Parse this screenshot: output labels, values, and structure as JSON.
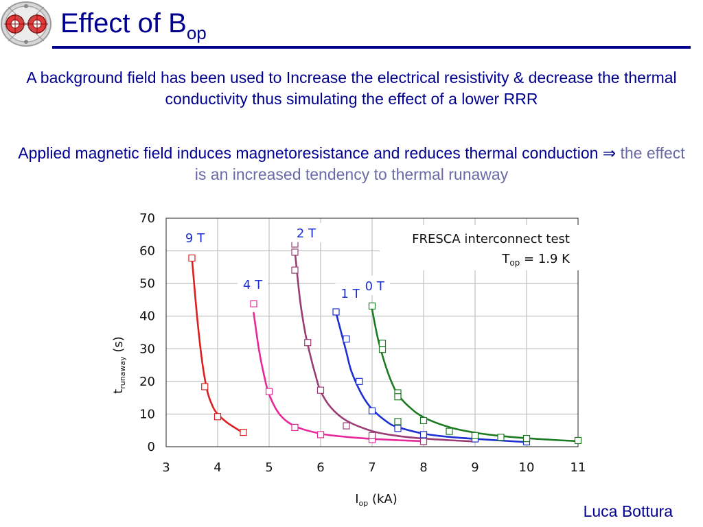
{
  "slide": {
    "title_main": "Effect of B",
    "title_sub": "op",
    "para1": "A background field has been used to Increase the electrical resistivity & decrease the thermal conductivity thus simulating the effect of a lower RRR",
    "para2_main": "Applied magnetic field induces magnetoresistance and reduces thermal conduction",
    "para2_arrow": "⇒",
    "para2_muted": "the effect is an increased tendency to thermal runaway",
    "author": "Luca Bottura",
    "logo_icon": "magnet-cross-section-logo"
  },
  "chart_data": {
    "type": "scatter",
    "title": "FRESCA interconnect test",
    "subtitle_main": "T",
    "subtitle_sub": "op",
    "subtitle_rest": " = 1.9 K",
    "xlabel_main": "I",
    "xlabel_sub": "op",
    "xlabel_rest": " (kA)",
    "ylabel_main": "t",
    "ylabel_sub": "runaway",
    "ylabel_rest": " (s)",
    "xlim": [
      3,
      11
    ],
    "ylim": [
      0,
      70
    ],
    "xticks": [
      3,
      4,
      5,
      6,
      7,
      8,
      9,
      10,
      11
    ],
    "yticks": [
      0,
      10,
      20,
      30,
      40,
      50,
      60,
      70
    ],
    "grid": true,
    "series": [
      {
        "name": "9 T",
        "color": "#dd1f1f",
        "points": [
          [
            3.5,
            57.8
          ],
          [
            3.75,
            18.4
          ],
          [
            4.0,
            9.2
          ],
          [
            4.5,
            4.4
          ]
        ],
        "curve": [
          [
            3.5,
            58
          ],
          [
            3.6,
            40
          ],
          [
            3.7,
            26
          ],
          [
            3.8,
            17
          ],
          [
            3.9,
            12.5
          ],
          [
            4.0,
            10
          ],
          [
            4.2,
            7.2
          ],
          [
            4.5,
            4.2
          ]
        ]
      },
      {
        "name": "4 T",
        "color": "#e8289a",
        "points": [
          [
            4.7,
            43.8
          ],
          [
            5.0,
            16.9
          ],
          [
            5.5,
            5.9
          ],
          [
            6.0,
            3.7
          ],
          [
            7.0,
            2.2
          ]
        ],
        "curve": [
          [
            4.7,
            41
          ],
          [
            4.8,
            30
          ],
          [
            4.9,
            22
          ],
          [
            5.0,
            16
          ],
          [
            5.2,
            10
          ],
          [
            5.5,
            6.3
          ],
          [
            6.0,
            4.0
          ],
          [
            6.5,
            3.0
          ],
          [
            7.0,
            2.4
          ],
          [
            7.5,
            2.0
          ],
          [
            8.0,
            1.7
          ]
        ]
      },
      {
        "name": "2 T",
        "color": "#9a3c74",
        "points": [
          [
            5.5,
            62.1
          ],
          [
            5.5,
            59.6
          ],
          [
            5.5,
            54.1
          ],
          [
            5.75,
            31.9
          ],
          [
            6.0,
            17.3
          ],
          [
            6.5,
            6.4
          ],
          [
            7.0,
            3.4
          ],
          [
            8.0,
            1.6
          ]
        ],
        "curve": [
          [
            5.5,
            60
          ],
          [
            5.6,
            45
          ],
          [
            5.7,
            35
          ],
          [
            5.8,
            28
          ],
          [
            5.9,
            22
          ],
          [
            6.0,
            17
          ],
          [
            6.2,
            12
          ],
          [
            6.5,
            8
          ],
          [
            7.0,
            4.8
          ],
          [
            7.5,
            3.3
          ],
          [
            8.0,
            2.5
          ],
          [
            8.5,
            2.0
          ],
          [
            9.0,
            1.6
          ]
        ]
      },
      {
        "name": "1 T",
        "color": "#1d2fd0",
        "points": [
          [
            6.3,
            41.3
          ],
          [
            6.5,
            33.0
          ],
          [
            6.75,
            20.0
          ],
          [
            7.0,
            11.0
          ],
          [
            7.5,
            5.6
          ],
          [
            8.0,
            3.7
          ],
          [
            9.0,
            2.4
          ],
          [
            10.0,
            1.5
          ]
        ],
        "curve": [
          [
            6.3,
            41
          ],
          [
            6.4,
            35
          ],
          [
            6.5,
            29
          ],
          [
            6.6,
            23
          ],
          [
            6.8,
            16
          ],
          [
            7.0,
            11.5
          ],
          [
            7.3,
            7.5
          ],
          [
            7.5,
            6
          ],
          [
            8.0,
            4
          ],
          [
            8.5,
            3
          ],
          [
            9.0,
            2.4
          ],
          [
            9.5,
            1.9
          ],
          [
            10.0,
            1.4
          ]
        ]
      },
      {
        "name": "0 T",
        "color": "#1c7a22",
        "points": [
          [
            7.0,
            43.1
          ],
          [
            7.2,
            31.7
          ],
          [
            7.2,
            29.8
          ],
          [
            7.5,
            16.5
          ],
          [
            7.5,
            15.3
          ],
          [
            7.5,
            7.7
          ],
          [
            8.0,
            8.0
          ],
          [
            8.5,
            4.7
          ],
          [
            9.0,
            3.4
          ],
          [
            9.5,
            2.9
          ],
          [
            10.0,
            2.5
          ],
          [
            11.0,
            1.9
          ]
        ],
        "curve": [
          [
            7.0,
            42
          ],
          [
            7.1,
            34
          ],
          [
            7.2,
            28
          ],
          [
            7.3,
            23
          ],
          [
            7.4,
            19
          ],
          [
            7.5,
            16
          ],
          [
            7.7,
            12.5
          ],
          [
            8.0,
            9
          ],
          [
            8.5,
            6
          ],
          [
            9.0,
            4.3
          ],
          [
            9.5,
            3.3
          ],
          [
            10.0,
            2.6
          ],
          [
            10.5,
            2.1
          ],
          [
            11.0,
            1.7
          ]
        ]
      }
    ]
  }
}
